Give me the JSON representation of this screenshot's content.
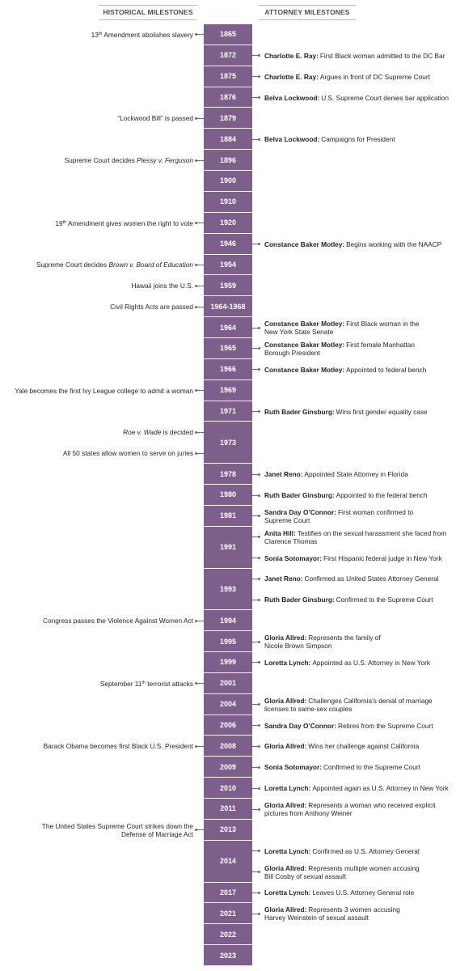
{
  "header": {
    "left": "HISTORICAL MILESTONES",
    "right": "ATTORNEY MILESTONES"
  },
  "rows": [
    {
      "year": "1865",
      "historical": [
        {
          "lines": [
            [
              "13",
              {
                "text": "th",
                "style": "sup"
              },
              " Amendment abolishes slavery"
            ]
          ]
        }
      ]
    },
    {
      "year": "1872",
      "attorney": [
        {
          "name": "Charlotte E. Ray:",
          "lines": [
            "First Black woman admitted to the DC Bar"
          ]
        }
      ]
    },
    {
      "year": "1875",
      "attorney": [
        {
          "name": "Charlotte E. Ray:",
          "lines": [
            "Argues in front of DC Supreme Court"
          ]
        }
      ]
    },
    {
      "year": "1876",
      "attorney": [
        {
          "name": "Belva Lockwood:",
          "lines": [
            "U.S. Supreme Court denies bar application"
          ]
        }
      ]
    },
    {
      "year": "1879",
      "historical": [
        {
          "lines": [
            [
              "“Lockwood Bill” is passed"
            ]
          ]
        }
      ]
    },
    {
      "year": "1884",
      "attorney": [
        {
          "name": "Belva Lockwood:",
          "lines": [
            "Campaigns for President"
          ]
        }
      ]
    },
    {
      "year": "1896",
      "historical": [
        {
          "lines": [
            [
              "Supreme Court decides ",
              {
                "text": "Plessy v. Ferguson",
                "style": "italic"
              }
            ]
          ]
        }
      ]
    },
    {
      "year": "1900"
    },
    {
      "year": "1910"
    },
    {
      "year": "1920",
      "historical": [
        {
          "lines": [
            [
              "19",
              {
                "text": "th",
                "style": "sup"
              },
              " Amendment gives women the right to vote"
            ]
          ]
        }
      ]
    },
    {
      "year": "1946",
      "attorney": [
        {
          "name": "Constance Baker Motley:",
          "lines": [
            "Begins working with the NAACP"
          ]
        }
      ]
    },
    {
      "year": "1954",
      "historical": [
        {
          "lines": [
            [
              "Supreme Court decides ",
              {
                "text": "Brown v. Board of Education",
                "style": "italic"
              }
            ]
          ]
        }
      ]
    },
    {
      "year": "1959",
      "historical": [
        {
          "lines": [
            [
              "Hawaii joins the U.S."
            ]
          ]
        }
      ]
    },
    {
      "year": "1964-1968",
      "historical": [
        {
          "lines": [
            [
              "Civil Rights Acts are passed"
            ]
          ]
        }
      ]
    },
    {
      "year": "1964",
      "attorney": [
        {
          "name": "Constance Baker Motley:",
          "lines": [
            "First Black woman in the",
            "New York State Senate"
          ]
        }
      ]
    },
    {
      "year": "1965",
      "attorney": [
        {
          "name": "Constance Baker Motley:",
          "lines": [
            "First female Manhattan",
            "Borough President"
          ]
        }
      ]
    },
    {
      "year": "1966",
      "attorney": [
        {
          "name": "Constance Baker Motley:",
          "lines": [
            "Appointed to federal bench"
          ]
        }
      ]
    },
    {
      "year": "1969",
      "historical": [
        {
          "lines": [
            [
              "Yale becomes the first Ivy League college to admit a woman"
            ]
          ]
        }
      ]
    },
    {
      "year": "1971",
      "attorney": [
        {
          "name": "Ruth Bader Ginsburg:",
          "lines": [
            "Wins first gender equality case"
          ]
        }
      ]
    },
    {
      "year": "1973",
      "historical": [
        {
          "lines": [
            [
              {
                "text": "Roe v. Wade",
                "style": "italic"
              },
              " is decided"
            ]
          ]
        },
        {
          "lines": [
            [
              "All 50 states allow women to serve on juries"
            ]
          ]
        }
      ]
    },
    {
      "year": "1978",
      "attorney": [
        {
          "name": "Janet Reno:",
          "lines": [
            "Appointed State Attorney in Florida"
          ]
        }
      ]
    },
    {
      "year": "1980",
      "attorney": [
        {
          "name": "Ruth Bader Ginsburg:",
          "lines": [
            "Appointed to the federal bench"
          ]
        }
      ]
    },
    {
      "year": "1981",
      "attorney": [
        {
          "name": "Sandra Day O’Connor:",
          "lines": [
            "First woman confirmed to",
            "Supreme Court"
          ]
        }
      ]
    },
    {
      "year": "1991",
      "attorney": [
        {
          "name": "Anita Hill:",
          "lines": [
            "Testifies on the sexual harassment she faced from",
            "Clarence Thomas"
          ]
        },
        {
          "name": "Sonia Sotomayor:",
          "lines": [
            "First Hispanic federal judge in New York"
          ]
        }
      ]
    },
    {
      "year": "1993",
      "attorney": [
        {
          "name": "Janet Reno:",
          "lines": [
            "Confirmed as United States Attorney General"
          ]
        },
        {
          "name": "Ruth Bader Ginsburg:",
          "lines": [
            "Confirmed to the Supreme Court"
          ]
        }
      ]
    },
    {
      "year": "1994",
      "historical": [
        {
          "lines": [
            [
              "Congress passes the Violence Against Women Act"
            ]
          ]
        }
      ]
    },
    {
      "year": "1995",
      "attorney": [
        {
          "name": "Gloria Allred:",
          "lines": [
            "Represents the family of",
            "Nicole Brown Simpson"
          ]
        }
      ]
    },
    {
      "year": "1999",
      "attorney": [
        {
          "name": "Loretta Lynch:",
          "lines": [
            "Appointed as U.S. Attorney in New York"
          ]
        }
      ]
    },
    {
      "year": "2001",
      "historical": [
        {
          "lines": [
            [
              "September 11",
              {
                "text": "th",
                "style": "sup"
              },
              " terrorist attacks"
            ]
          ]
        }
      ]
    },
    {
      "year": "2004",
      "attorney": [
        {
          "name": "Gloria Allred:",
          "lines": [
            "Challenges California’s denial of marriage",
            "licenses to same-sex couples"
          ]
        }
      ]
    },
    {
      "year": "2006",
      "attorney": [
        {
          "name": "Sandra Day O’Connor:",
          "lines": [
            "Retires from the Supreme Court"
          ]
        }
      ]
    },
    {
      "year": "2008",
      "historical": [
        {
          "lines": [
            [
              "Barack Obama becomes first Black U.S. President"
            ]
          ]
        }
      ],
      "attorney": [
        {
          "name": "Gloria Allred:",
          "lines": [
            "Wins her challenge against California"
          ]
        }
      ]
    },
    {
      "year": "2009",
      "attorney": [
        {
          "name": "Sonia Sotomayor:",
          "lines": [
            "Confirmed to the Supreme Court"
          ]
        }
      ]
    },
    {
      "year": "2010",
      "attorney": [
        {
          "name": "Loretta Lynch:",
          "lines": [
            "Appointed again as U.S. Attorney in New York"
          ]
        }
      ]
    },
    {
      "year": "2011",
      "attorney": [
        {
          "name": "Gloria Allred:",
          "lines": [
            "Represents a woman who received explicit",
            "pictures from Anthony Weiner"
          ]
        }
      ]
    },
    {
      "year": "2013",
      "historical": [
        {
          "lines": [
            [
              "The United States Supreme Court strikes down the"
            ],
            [
              "Defense of Marriage Act"
            ]
          ]
        }
      ]
    },
    {
      "year": "2014",
      "attorney": [
        {
          "name": "Loretta Lynch:",
          "lines": [
            "Confirmed as U.S. Attorney General"
          ]
        },
        {
          "name": "Gloria Allred:",
          "lines": [
            "Represents multiple women accusing",
            "Bill Cosby of sexual assault"
          ]
        }
      ]
    },
    {
      "year": "2017",
      "attorney": [
        {
          "name": "Loretta Lynch:",
          "lines": [
            "Leaves U.S. Attorney General role"
          ]
        }
      ]
    },
    {
      "year": "2021",
      "attorney": [
        {
          "name": "Gloria Allred:",
          "lines": [
            "Represents 3 women accusing",
            "Harvey Weinstein of sexual assault"
          ]
        }
      ]
    },
    {
      "year": "2022"
    },
    {
      "year": "2023"
    }
  ]
}
